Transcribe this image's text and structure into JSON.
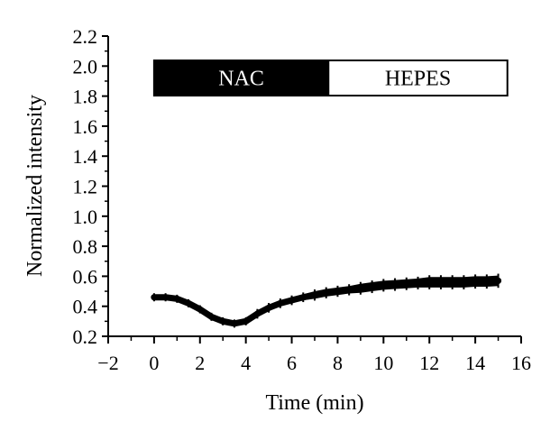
{
  "chart_data": {
    "type": "line",
    "title": "",
    "xlabel": "Time (min)",
    "ylabel": "Normalized intensity",
    "xlim": [
      -2,
      16
    ],
    "ylim": [
      0.2,
      2.2
    ],
    "x_ticks": [
      -2,
      0,
      2,
      4,
      6,
      8,
      10,
      12,
      14,
      16
    ],
    "x_tick_labels": [
      "−2",
      "0",
      "2",
      "4",
      "6",
      "8",
      "10",
      "12",
      "14",
      "16"
    ],
    "y_ticks": [
      0.2,
      0.4,
      0.6,
      0.8,
      1.0,
      1.2,
      1.4,
      1.6,
      1.8,
      2.0,
      2.2
    ],
    "y_tick_labels": [
      "0.2",
      "0.4",
      "0.6",
      "0.8",
      "1.0",
      "1.2",
      "1.4",
      "1.6",
      "1.8",
      "2.0",
      "2.2"
    ],
    "grid": false,
    "color": "#000000",
    "phases": [
      {
        "label": "NAC",
        "x_start": 0,
        "x_end": 7.6,
        "fill": "#000000",
        "text_color": "#ffffff"
      },
      {
        "label": "HEPES",
        "x_start": 7.6,
        "x_end": 15.4,
        "fill": "#ffffff",
        "text_color": "#000000"
      }
    ],
    "series": [
      {
        "x": [
          0,
          0.5,
          1,
          1.5,
          2,
          2.5,
          3,
          3.5,
          4,
          4.5,
          5,
          5.5,
          6,
          6.5,
          7,
          7.5,
          8,
          8.5,
          9,
          9.5,
          10,
          10.5,
          11,
          11.5,
          12,
          12.5,
          13,
          13.5,
          14,
          14.5,
          15
        ],
        "y": [
          0.46,
          0.46,
          0.45,
          0.42,
          0.38,
          0.33,
          0.3,
          0.285,
          0.3,
          0.35,
          0.39,
          0.42,
          0.44,
          0.46,
          0.475,
          0.49,
          0.5,
          0.51,
          0.52,
          0.53,
          0.54,
          0.545,
          0.55,
          0.555,
          0.56,
          0.56,
          0.56,
          0.56,
          0.565,
          0.565,
          0.57
        ],
        "error": [
          0.015,
          0.015,
          0.015,
          0.015,
          0.015,
          0.015,
          0.015,
          0.015,
          0.015,
          0.02,
          0.02,
          0.02,
          0.02,
          0.02,
          0.025,
          0.025,
          0.025,
          0.025,
          0.03,
          0.03,
          0.03,
          0.03,
          0.03,
          0.03,
          0.035,
          0.035,
          0.035,
          0.035,
          0.035,
          0.035,
          0.035
        ]
      }
    ]
  }
}
